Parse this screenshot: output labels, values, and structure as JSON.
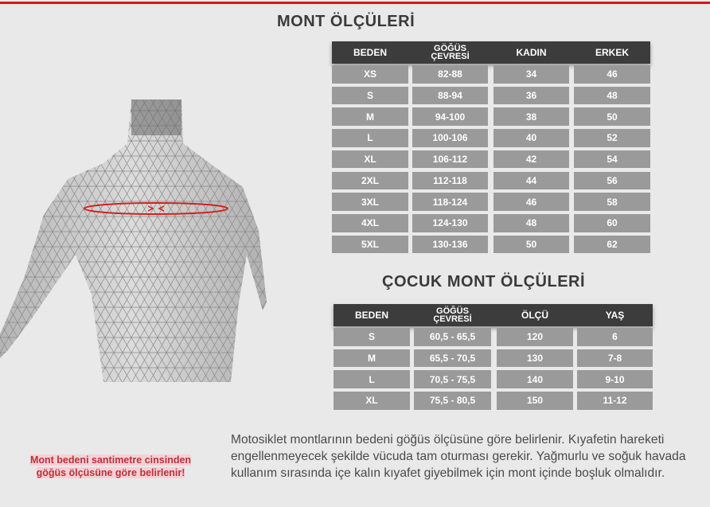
{
  "mont": {
    "title": "MONT ÖLÇÜLERİ",
    "headers": [
      "BEDEN",
      "GÖĞÜS ÇEVRESİ",
      "KADIN",
      "ERKEK"
    ],
    "rows": [
      [
        "XS",
        "82-88",
        "34",
        "46"
      ],
      [
        "S",
        "88-94",
        "36",
        "48"
      ],
      [
        "M",
        "94-100",
        "38",
        "50"
      ],
      [
        "L",
        "100-106",
        "40",
        "52"
      ],
      [
        "XL",
        "106-112",
        "42",
        "54"
      ],
      [
        "2XL",
        "112-118",
        "44",
        "56"
      ],
      [
        "3XL",
        "118-124",
        "46",
        "58"
      ],
      [
        "4XL",
        "124-130",
        "48",
        "60"
      ],
      [
        "5XL",
        "130-136",
        "50",
        "62"
      ]
    ]
  },
  "cocuk": {
    "title": "ÇOCUK MONT ÖLÇÜLERİ",
    "headers": [
      "BEDEN",
      "GÖĞÜS ÇEVRESİ",
      "ÖLÇÜ",
      "YAŞ"
    ],
    "rows": [
      [
        "S",
        "60,5 - 65,5",
        "120",
        "6"
      ],
      [
        "M",
        "65,5 - 70,5",
        "130",
        "7-8"
      ],
      [
        "L",
        "70,5 - 75,5",
        "140",
        "9-10"
      ],
      [
        "XL",
        "75,5 - 80,5",
        "150",
        "11-12"
      ]
    ]
  },
  "note": {
    "line1": "Mont bedeni santimetre cinsinden",
    "line2": "göğüs ölçüsüne göre belirlenir!"
  },
  "description": "Motosiklet montlarının bedeni göğüs ölçüsüne göre belirlenir. Kıyafetin hareketi engellenmeyecek şekilde vücuda tam oturması gerekir. Yağmurlu ve soğuk havada kullanım sırasında içe kalın kıyafet giyebilmek için mont içinde boşluk olmalıdır.",
  "colors": {
    "accent_red": "#e0121b",
    "header_bg": "#3c3c3c",
    "cell_bg": "#9a9a9a",
    "note_text": "#b8323a"
  }
}
